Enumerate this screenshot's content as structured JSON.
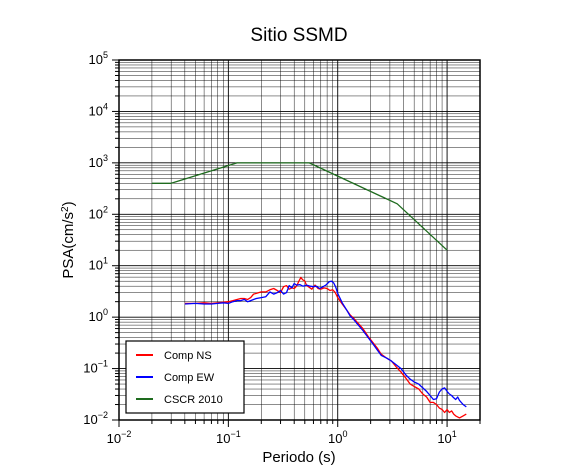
{
  "chart_data": {
    "type": "line",
    "title": "Sitio SSMD",
    "xlabel": "Periodo (s)",
    "ylabel_main": "PSA(cm/s",
    "ylabel_sup": "2",
    "ylabel_end": ")",
    "x_scale": "log",
    "y_scale": "log",
    "xlim": [
      0.01,
      20
    ],
    "ylim": [
      0.01,
      100000
    ],
    "grid": true,
    "legend_position": "bottom-left",
    "x_ticks": [
      {
        "base": "10",
        "exp": "−2",
        "value": 0.01
      },
      {
        "base": "10",
        "exp": "−1",
        "value": 0.1
      },
      {
        "base": "10",
        "exp": "0",
        "value": 1
      },
      {
        "base": "10",
        "exp": "1",
        "value": 10
      }
    ],
    "y_ticks": [
      {
        "base": "10",
        "exp": "−2",
        "value": 0.01
      },
      {
        "base": "10",
        "exp": "−1",
        "value": 0.1
      },
      {
        "base": "10",
        "exp": "0",
        "value": 1
      },
      {
        "base": "10",
        "exp": "1",
        "value": 10
      },
      {
        "base": "10",
        "exp": "2",
        "value": 100
      },
      {
        "base": "10",
        "exp": "3",
        "value": 1000
      },
      {
        "base": "10",
        "exp": "4",
        "value": 10000
      },
      {
        "base": "10",
        "exp": "5",
        "value": 100000
      }
    ],
    "series": [
      {
        "name": "Comp NS",
        "color": "#ff0000",
        "points": [
          [
            0.04,
            1.85
          ],
          [
            0.05,
            1.85
          ],
          [
            0.06,
            1.9
          ],
          [
            0.07,
            1.85
          ],
          [
            0.08,
            1.9
          ],
          [
            0.09,
            1.95
          ],
          [
            0.1,
            2.0
          ],
          [
            0.11,
            2.1
          ],
          [
            0.12,
            2.2
          ],
          [
            0.13,
            2.3
          ],
          [
            0.14,
            2.3
          ],
          [
            0.15,
            2.2
          ],
          [
            0.16,
            2.4
          ],
          [
            0.17,
            2.8
          ],
          [
            0.18,
            2.9
          ],
          [
            0.2,
            3.1
          ],
          [
            0.22,
            3.1
          ],
          [
            0.24,
            3.4
          ],
          [
            0.26,
            3.6
          ],
          [
            0.28,
            3.3
          ],
          [
            0.3,
            3.0
          ],
          [
            0.32,
            3.9
          ],
          [
            0.34,
            4.1
          ],
          [
            0.36,
            3.5
          ],
          [
            0.38,
            3.7
          ],
          [
            0.4,
            3.6
          ],
          [
            0.42,
            4.0
          ],
          [
            0.44,
            4.9
          ],
          [
            0.46,
            5.9
          ],
          [
            0.48,
            5.3
          ],
          [
            0.5,
            5.0
          ],
          [
            0.52,
            4.1
          ],
          [
            0.55,
            3.8
          ],
          [
            0.58,
            3.5
          ],
          [
            0.62,
            4.2
          ],
          [
            0.66,
            3.6
          ],
          [
            0.7,
            3.5
          ],
          [
            0.75,
            3.7
          ],
          [
            0.8,
            3.6
          ],
          [
            0.85,
            3.3
          ],
          [
            0.9,
            3.4
          ],
          [
            0.95,
            3.0
          ],
          [
            1.0,
            2.4
          ],
          [
            1.1,
            1.8
          ],
          [
            1.2,
            1.4
          ],
          [
            1.3,
            1.1
          ],
          [
            1.4,
            0.95
          ],
          [
            1.5,
            0.8
          ],
          [
            1.7,
            0.6
          ],
          [
            1.9,
            0.42
          ],
          [
            2.1,
            0.32
          ],
          [
            2.3,
            0.25
          ],
          [
            2.5,
            0.19
          ],
          [
            2.8,
            0.16
          ],
          [
            3.1,
            0.14
          ],
          [
            3.4,
            0.11
          ],
          [
            3.8,
            0.085
          ],
          [
            4.2,
            0.065
          ],
          [
            4.6,
            0.05
          ],
          [
            5.0,
            0.045
          ],
          [
            5.5,
            0.04
          ],
          [
            6.0,
            0.032
          ],
          [
            6.5,
            0.028
          ],
          [
            7.0,
            0.022
          ],
          [
            7.5,
            0.022
          ],
          [
            8.0,
            0.02
          ],
          [
            8.5,
            0.017
          ],
          [
            9.0,
            0.016
          ],
          [
            9.5,
            0.014
          ],
          [
            10.0,
            0.016
          ],
          [
            10.5,
            0.014
          ],
          [
            11.0,
            0.015
          ],
          [
            11.5,
            0.013
          ],
          [
            12.0,
            0.012
          ],
          [
            13.0,
            0.011
          ],
          [
            14.0,
            0.012
          ],
          [
            15.0,
            0.013
          ]
        ]
      },
      {
        "name": "Comp EW",
        "color": "#0000ff",
        "points": [
          [
            0.04,
            1.8
          ],
          [
            0.05,
            1.85
          ],
          [
            0.06,
            1.8
          ],
          [
            0.07,
            1.8
          ],
          [
            0.08,
            1.85
          ],
          [
            0.09,
            1.9
          ],
          [
            0.1,
            1.85
          ],
          [
            0.11,
            2.0
          ],
          [
            0.12,
            2.1
          ],
          [
            0.13,
            2.1
          ],
          [
            0.14,
            2.2
          ],
          [
            0.15,
            2.0
          ],
          [
            0.16,
            2.1
          ],
          [
            0.17,
            2.2
          ],
          [
            0.18,
            2.3
          ],
          [
            0.2,
            2.4
          ],
          [
            0.22,
            2.5
          ],
          [
            0.24,
            3.1
          ],
          [
            0.26,
            2.8
          ],
          [
            0.28,
            3.0
          ],
          [
            0.3,
            3.3
          ],
          [
            0.32,
            2.8
          ],
          [
            0.34,
            3.0
          ],
          [
            0.36,
            4.1
          ],
          [
            0.38,
            3.7
          ],
          [
            0.4,
            4.5
          ],
          [
            0.42,
            4.2
          ],
          [
            0.45,
            4.3
          ],
          [
            0.48,
            4.0
          ],
          [
            0.52,
            4.2
          ],
          [
            0.56,
            4.0
          ],
          [
            0.6,
            3.9
          ],
          [
            0.64,
            4.0
          ],
          [
            0.68,
            3.6
          ],
          [
            0.72,
            3.8
          ],
          [
            0.78,
            4.2
          ],
          [
            0.84,
            4.9
          ],
          [
            0.88,
            5.0
          ],
          [
            0.92,
            4.6
          ],
          [
            0.96,
            3.8
          ],
          [
            1.0,
            2.9
          ],
          [
            1.1,
            1.9
          ],
          [
            1.2,
            1.4
          ],
          [
            1.3,
            1.05
          ],
          [
            1.4,
            0.9
          ],
          [
            1.5,
            0.75
          ],
          [
            1.7,
            0.55
          ],
          [
            1.9,
            0.4
          ],
          [
            2.1,
            0.3
          ],
          [
            2.3,
            0.23
          ],
          [
            2.5,
            0.18
          ],
          [
            2.8,
            0.16
          ],
          [
            3.1,
            0.14
          ],
          [
            3.4,
            0.12
          ],
          [
            3.8,
            0.1
          ],
          [
            4.2,
            0.075
          ],
          [
            4.6,
            0.062
          ],
          [
            5.0,
            0.055
          ],
          [
            5.5,
            0.05
          ],
          [
            6.0,
            0.042
          ],
          [
            6.5,
            0.036
          ],
          [
            7.0,
            0.03
          ],
          [
            7.5,
            0.025
          ],
          [
            8.0,
            0.026
          ],
          [
            8.5,
            0.035
          ],
          [
            9.0,
            0.04
          ],
          [
            9.5,
            0.042
          ],
          [
            10.0,
            0.036
          ],
          [
            10.5,
            0.032
          ],
          [
            11.0,
            0.03
          ],
          [
            11.5,
            0.027
          ],
          [
            12.0,
            0.025
          ],
          [
            12.5,
            0.028
          ],
          [
            13.0,
            0.024
          ],
          [
            14.0,
            0.02
          ],
          [
            15.0,
            0.018
          ]
        ]
      },
      {
        "name": "CSCR 2010",
        "color": "#1e6b1e",
        "points": [
          [
            0.02,
            400
          ],
          [
            0.03,
            400
          ],
          [
            0.12,
            1000
          ],
          [
            0.55,
            1000
          ],
          [
            3.5,
            160
          ],
          [
            10.0,
            20
          ]
        ]
      }
    ]
  }
}
